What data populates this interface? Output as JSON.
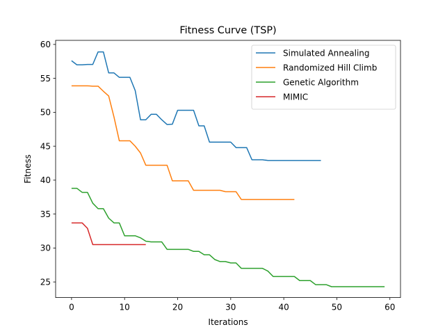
{
  "chart_data": {
    "type": "line",
    "title": "Fitness Curve (TSP)",
    "xlabel": "Iterations",
    "ylabel": "Fitness",
    "xlim": [
      -3,
      62
    ],
    "ylim": [
      22.7,
      60.6
    ],
    "xticks": [
      0,
      10,
      20,
      30,
      40,
      50,
      60
    ],
    "yticks": [
      25,
      30,
      35,
      40,
      45,
      50,
      55,
      60
    ],
    "grid": false,
    "legend_position": "top-right",
    "series": [
      {
        "name": "Simulated Annealing",
        "color": "#1f77b4",
        "x": [
          0,
          1,
          2,
          3,
          4,
          5,
          6,
          7,
          8,
          9,
          10,
          11,
          12,
          13,
          14,
          15,
          16,
          17,
          18,
          19,
          20,
          21,
          22,
          23,
          24,
          25,
          26,
          27,
          28,
          29,
          30,
          31,
          32,
          33,
          34,
          35,
          36,
          37,
          38,
          39,
          40,
          41,
          42,
          43,
          44,
          45,
          46,
          47
        ],
        "y": [
          57.6,
          57.0,
          57.0,
          57.05,
          57.05,
          58.9,
          58.9,
          55.8,
          55.8,
          55.15,
          55.15,
          55.15,
          53.2,
          48.9,
          48.9,
          49.7,
          49.7,
          48.9,
          48.2,
          48.25,
          50.3,
          50.3,
          50.3,
          50.3,
          48.0,
          48.0,
          45.6,
          45.6,
          45.6,
          45.6,
          45.6,
          44.8,
          44.8,
          44.8,
          43.0,
          43.0,
          43.0,
          42.9,
          42.9,
          42.9,
          42.9,
          42.9,
          42.9,
          42.9,
          42.9,
          42.9,
          42.9,
          42.9
        ]
      },
      {
        "name": "Randomized Hill Climb",
        "color": "#ff7f0e",
        "x": [
          0,
          1,
          2,
          3,
          4,
          5,
          6,
          7,
          8,
          9,
          10,
          11,
          12,
          13,
          14,
          15,
          16,
          17,
          18,
          19,
          20,
          21,
          22,
          23,
          24,
          25,
          26,
          27,
          28,
          29,
          30,
          31,
          32,
          33,
          34,
          35,
          36,
          37,
          38,
          39,
          40,
          41,
          42
        ],
        "y": [
          53.9,
          53.9,
          53.9,
          53.9,
          53.85,
          53.85,
          53.1,
          52.4,
          49.3,
          45.8,
          45.8,
          45.8,
          45.0,
          44.0,
          42.2,
          42.2,
          42.2,
          42.2,
          42.2,
          39.9,
          39.9,
          39.9,
          39.9,
          38.5,
          38.5,
          38.5,
          38.5,
          38.5,
          38.5,
          38.3,
          38.3,
          38.3,
          37.15,
          37.15,
          37.15,
          37.15,
          37.15,
          37.15,
          37.15,
          37.15,
          37.15,
          37.15,
          37.15
        ]
      },
      {
        "name": "Genetic Algorithm",
        "color": "#2ca02c",
        "x": [
          0,
          1,
          2,
          3,
          4,
          5,
          6,
          7,
          8,
          9,
          10,
          11,
          12,
          13,
          14,
          15,
          16,
          17,
          18,
          19,
          20,
          21,
          22,
          23,
          24,
          25,
          26,
          27,
          28,
          29,
          30,
          31,
          32,
          33,
          34,
          35,
          36,
          37,
          38,
          39,
          40,
          41,
          42,
          43,
          44,
          45,
          46,
          47,
          48,
          49,
          50,
          51,
          52,
          53,
          54,
          55,
          56,
          57,
          58,
          59
        ],
        "y": [
          38.8,
          38.8,
          38.2,
          38.2,
          36.6,
          35.8,
          35.8,
          34.4,
          33.7,
          33.7,
          31.8,
          31.8,
          31.8,
          31.5,
          31.0,
          30.9,
          30.9,
          30.9,
          29.8,
          29.8,
          29.8,
          29.8,
          29.8,
          29.5,
          29.5,
          29.0,
          29.0,
          28.3,
          28.0,
          28.0,
          27.8,
          27.8,
          27.0,
          27.0,
          27.0,
          27.0,
          27.0,
          26.6,
          25.8,
          25.8,
          25.8,
          25.8,
          25.8,
          25.2,
          25.2,
          25.2,
          24.6,
          24.6,
          24.6,
          24.3,
          24.3,
          24.3,
          24.3,
          24.3,
          24.3,
          24.3,
          24.3,
          24.3,
          24.3,
          24.3
        ]
      },
      {
        "name": "MIMIC",
        "color": "#d62728",
        "x": [
          0,
          1,
          2,
          3,
          4,
          5,
          6,
          7,
          8,
          9,
          10,
          11,
          12,
          13,
          14
        ],
        "y": [
          33.7,
          33.7,
          33.7,
          32.9,
          30.5,
          30.5,
          30.5,
          30.5,
          30.5,
          30.5,
          30.5,
          30.5,
          30.5,
          30.5,
          30.5
        ]
      }
    ]
  }
}
